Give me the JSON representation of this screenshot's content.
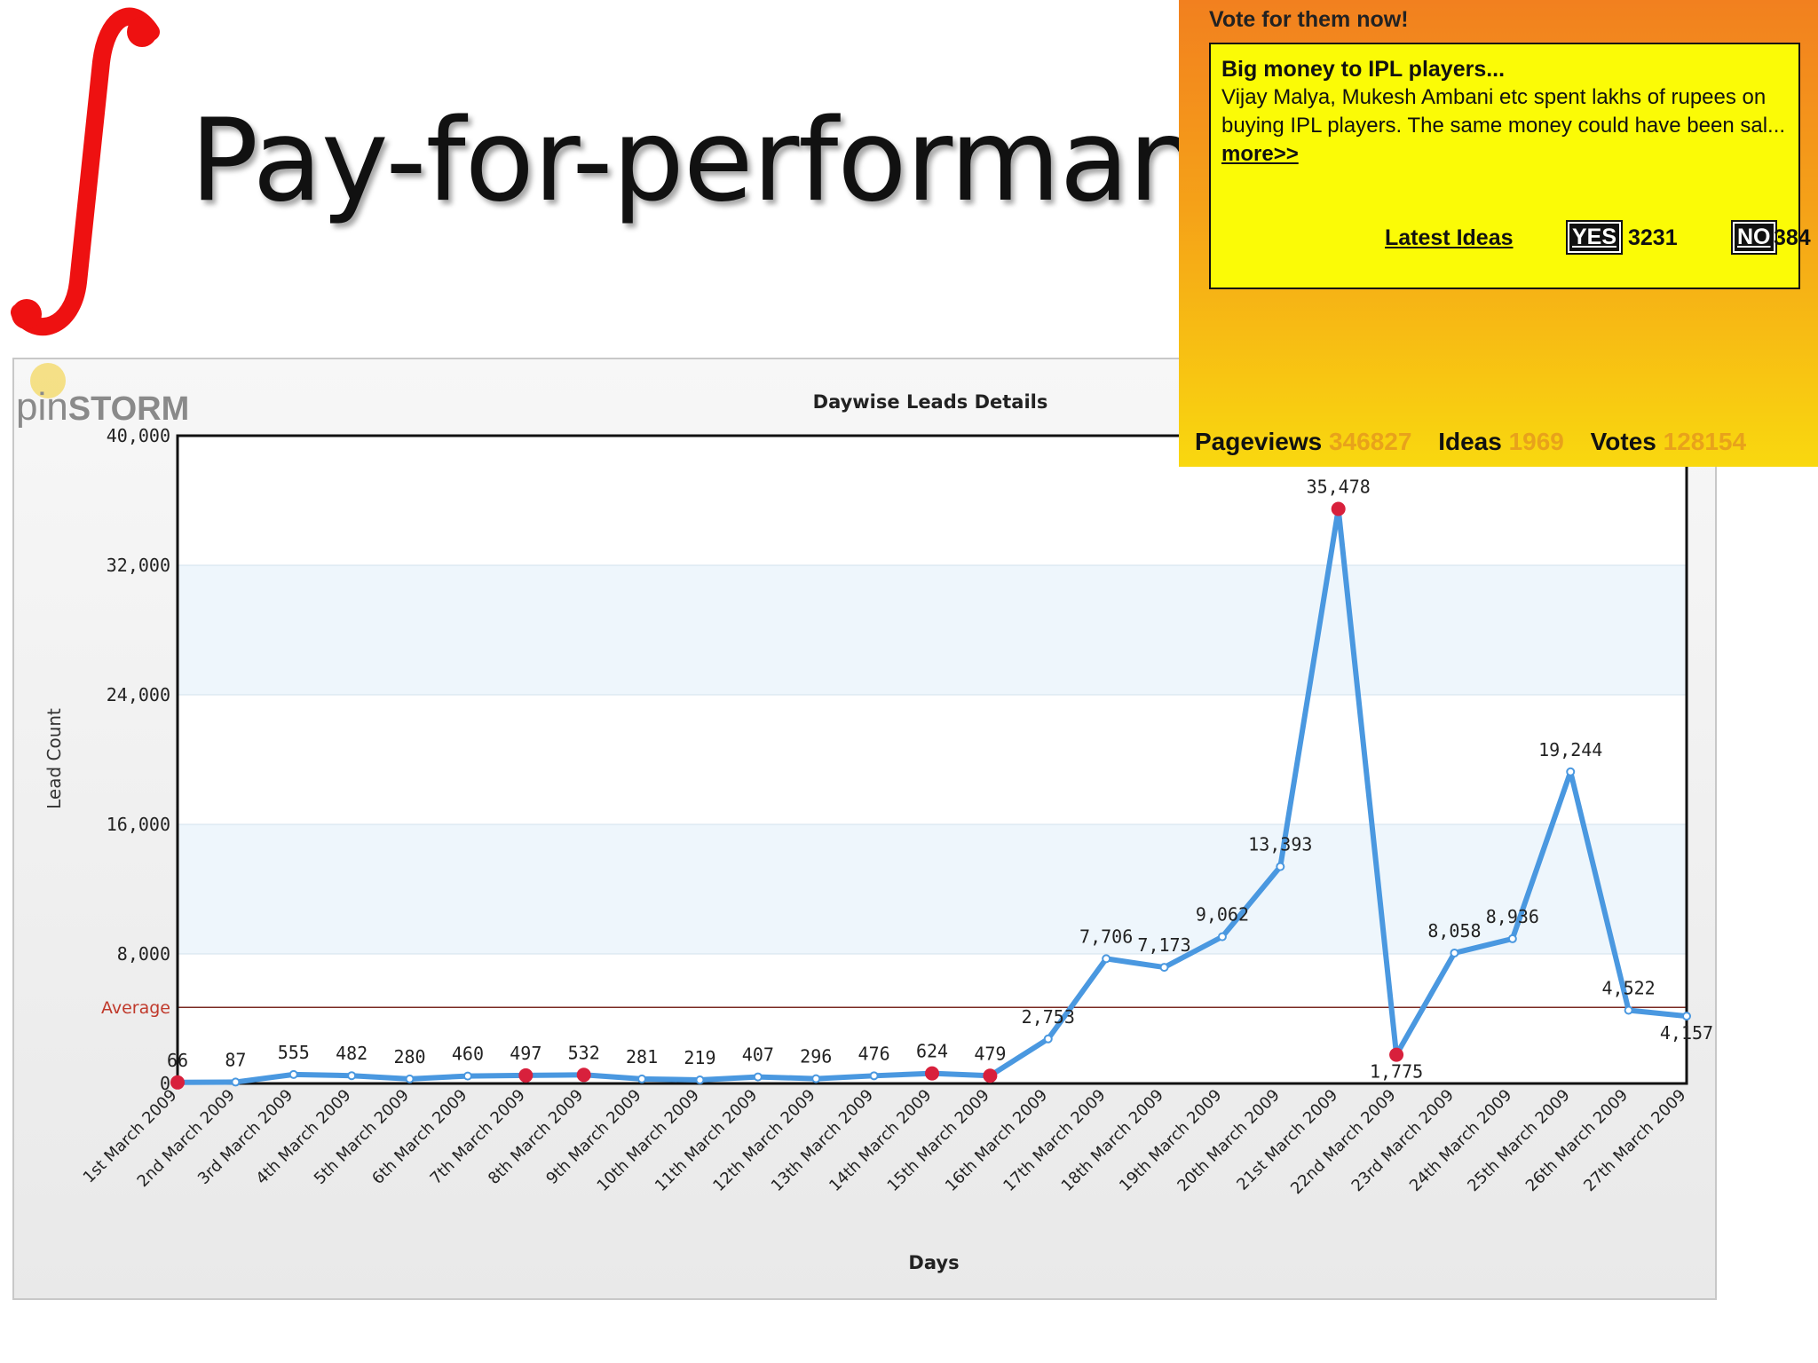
{
  "slide": {
    "title": "Pay-for-performance"
  },
  "vote_widget": {
    "heading": "Vote for them now!",
    "idea_title": "Big money to IPL players...",
    "idea_text": "Vijay Malya, Mukesh Ambani etc spent lakhs of rupees on buying IPL players. The same money could have been sal...",
    "more_link": "more>>",
    "latest_ideas_link": "Latest Ideas",
    "yes_label": "YES",
    "yes_count": "3231",
    "no_label": "NO",
    "no_count": "384",
    "stats": {
      "pageviews_label": "Pageviews",
      "pageviews_value": "346827",
      "ideas_label": "Ideas",
      "ideas_value": "1969",
      "votes_label": "Votes",
      "votes_value": "128154"
    }
  },
  "chart_data": {
    "type": "line",
    "logo": {
      "text_a": "pin",
      "text_b": "STORM"
    },
    "title": "Daywise Leads Details",
    "xlabel": "Days",
    "ylabel": "Lead Count",
    "ylim": [
      0,
      40000
    ],
    "y_ticks": [
      0,
      8000,
      16000,
      24000,
      32000,
      40000
    ],
    "y_tick_labels": [
      "0",
      "8,000",
      "16,000",
      "24,000",
      "32,000",
      "40,000"
    ],
    "average": {
      "label": "Average",
      "value": 4700
    },
    "categories": [
      "1st March 2009",
      "2nd March 2009",
      "3rd March 2009",
      "4th March 2009",
      "5th March 2009",
      "6th March 2009",
      "7th March 2009",
      "8th March 2009",
      "9th March 2009",
      "10th March 2009",
      "11th March 2009",
      "12th March 2009",
      "13th March 2009",
      "14th March 2009",
      "15th March 2009",
      "16th March 2009",
      "17th March 2009",
      "18th March 2009",
      "19th March 2009",
      "20th March 2009",
      "21st March 2009",
      "22nd March 2009",
      "23rd March 2009",
      "24th March 2009",
      "25th March 2009",
      "26th March 2009",
      "27th March 2009"
    ],
    "values": [
      66,
      87,
      555,
      482,
      280,
      460,
      497,
      532,
      281,
      219,
      407,
      296,
      476,
      624,
      479,
      2753,
      7706,
      7173,
      9062,
      13393,
      35478,
      1775,
      8058,
      8936,
      19244,
      4522,
      4157
    ],
    "value_labels": [
      "66",
      "87",
      "555",
      "482",
      "280",
      "460",
      "497",
      "532",
      "281",
      "219",
      "407",
      "296",
      "476",
      "624",
      "479",
      "2,753",
      "7,706",
      "7,173",
      "9,062",
      "13,393",
      "35,478",
      "1,775",
      "8,058",
      "8,936",
      "19,244",
      "4,522",
      "4,157"
    ],
    "highlighted_points": [
      0,
      6,
      7,
      13,
      14,
      20,
      21
    ],
    "colors": {
      "line": "#4a98e0",
      "highlight": "#d8203c",
      "average_line": "#7a2a22",
      "average_label": "#c0392b",
      "band": "#eef6fc"
    },
    "grid": true,
    "legend": "none"
  }
}
